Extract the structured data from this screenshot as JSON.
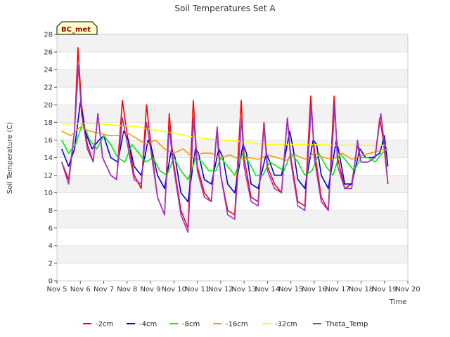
{
  "chart_data": {
    "type": "line",
    "title": "Soil Temperatures Set A",
    "xlabel": "Time",
    "ylabel": "Soil Temperature (C)",
    "badge": "BC_met",
    "xlim": [
      5,
      20
    ],
    "ylim": [
      0,
      28
    ],
    "x_ticks": [
      5,
      6,
      7,
      8,
      9,
      10,
      11,
      12,
      13,
      14,
      15,
      16,
      17,
      18,
      19,
      20
    ],
    "x_tick_labels": [
      "Nov 5",
      "Nov 6",
      "Nov 7",
      "Nov 8",
      "Nov 9",
      "Nov 10",
      "Nov 11",
      "Nov 12",
      "Nov 13",
      "Nov 14",
      "Nov 15",
      "Nov 16",
      "Nov 17",
      "Nov 18",
      "Nov 19",
      "Nov 20"
    ],
    "y_ticks": [
      0,
      2,
      4,
      6,
      8,
      10,
      12,
      14,
      16,
      18,
      20,
      22,
      24,
      26,
      28
    ],
    "grid": "horizontal bands",
    "legend_position": "bottom",
    "series": [
      {
        "name": "-2cm",
        "color": "#ff0000",
        "x": [
          5.2,
          5.5,
          5.75,
          5.9,
          6.05,
          6.3,
          6.55,
          6.75,
          6.95,
          7.3,
          7.55,
          7.8,
          7.98,
          8.3,
          8.6,
          8.83,
          8.95,
          9.3,
          9.6,
          9.8,
          9.95,
          10.3,
          10.6,
          10.83,
          11.0,
          11.3,
          11.6,
          11.83,
          12.0,
          12.3,
          12.6,
          12.88,
          13.0,
          13.3,
          13.6,
          13.85,
          14.0,
          14.3,
          14.6,
          14.85,
          15.0,
          15.3,
          15.6,
          15.85,
          16.0,
          16.3,
          16.6,
          16.85,
          17.0,
          17.3,
          17.6,
          17.85,
          18.0,
          18.3,
          18.6,
          18.8,
          18.95,
          19.15
        ],
        "y": [
          13.5,
          11.5,
          17,
          26.5,
          20,
          15.5,
          13.5,
          19,
          14,
          12,
          11.5,
          20.5,
          17,
          12,
          10.5,
          20,
          17,
          9.5,
          7.5,
          19,
          14,
          8,
          6,
          20.5,
          13,
          10,
          9,
          17,
          12,
          8,
          7.5,
          20.5,
          14,
          9.5,
          9,
          18,
          13,
          11,
          10,
          18.5,
          14,
          9,
          8.5,
          21,
          15,
          9.5,
          8,
          21,
          14,
          10.5,
          11,
          15.5,
          13.5,
          13.5,
          14,
          18.5,
          16,
          11
        ]
      },
      {
        "name": "-4cm",
        "color": "#0000cc",
        "x": [
          5.2,
          5.5,
          5.75,
          6.0,
          6.2,
          6.5,
          6.8,
          7.0,
          7.3,
          7.6,
          7.85,
          8.05,
          8.3,
          8.6,
          8.9,
          9.05,
          9.3,
          9.6,
          9.9,
          10.05,
          10.3,
          10.6,
          10.92,
          11.05,
          11.3,
          11.6,
          11.92,
          12.1,
          12.3,
          12.6,
          12.95,
          13.1,
          13.3,
          13.6,
          13.95,
          14.1,
          14.3,
          14.6,
          14.95,
          15.1,
          15.3,
          15.6,
          15.95,
          16.1,
          16.3,
          16.6,
          16.95,
          17.1,
          17.3,
          17.6,
          17.95,
          18.2,
          18.5,
          18.8,
          19.0,
          19.15
        ],
        "y": [
          15,
          13,
          15,
          20.3,
          17,
          15,
          16,
          16.5,
          14,
          13.5,
          17,
          16,
          13,
          12,
          16,
          15,
          12,
          10.5,
          15,
          14,
          10,
          9,
          15,
          14.5,
          11.5,
          11,
          15,
          14,
          11,
          10,
          15.5,
          14.5,
          11,
          10.5,
          14.5,
          13.5,
          12,
          12,
          17,
          15,
          11.5,
          10.5,
          16,
          15.5,
          12,
          10.5,
          16,
          14,
          11,
          11,
          15,
          14,
          14,
          14.5,
          16.5,
          13
        ]
      },
      {
        "name": "-8cm",
        "color": "#00ee00",
        "x": [
          5.2,
          5.5,
          5.8,
          6.1,
          6.4,
          6.7,
          7.0,
          7.3,
          7.6,
          7.9,
          8.2,
          8.5,
          8.8,
          9.1,
          9.4,
          9.7,
          10.0,
          10.3,
          10.6,
          10.95,
          11.2,
          11.5,
          11.8,
          12.0,
          12.3,
          12.6,
          12.95,
          13.2,
          13.5,
          13.8,
          14.1,
          14.4,
          14.7,
          15.0,
          15.3,
          15.6,
          15.9,
          16.2,
          16.5,
          16.8,
          17.1,
          17.4,
          17.7,
          18.0,
          18.3,
          18.6,
          18.9,
          19.15
        ],
        "y": [
          16,
          14.5,
          15.5,
          18,
          16,
          15,
          16.5,
          15.5,
          14,
          13.5,
          15.5,
          14.5,
          13.5,
          14,
          12.5,
          12,
          14,
          12.5,
          11.5,
          14,
          13.5,
          12.5,
          12.5,
          14,
          13,
          12,
          14.5,
          13.5,
          12,
          12,
          13.5,
          13,
          12.5,
          14.5,
          13.5,
          12,
          12.5,
          14.5,
          13,
          12,
          14.5,
          13.5,
          12.5,
          14,
          14,
          13.5,
          14.5,
          15
        ]
      },
      {
        "name": "-16cm",
        "color": "#ff9900",
        "x": [
          5.2,
          5.6,
          6.0,
          6.4,
          6.8,
          7.2,
          7.6,
          8.0,
          8.4,
          8.8,
          9.2,
          9.6,
          10.0,
          10.4,
          10.8,
          11.2,
          11.6,
          12.0,
          12.4,
          12.8,
          13.2,
          13.6,
          14.0,
          14.4,
          14.8,
          15.2,
          15.6,
          16.0,
          16.4,
          16.8,
          17.2,
          17.6,
          18.0,
          18.4,
          18.8,
          19.15
        ],
        "y": [
          17,
          16.5,
          17.5,
          17,
          16.8,
          16.5,
          16.5,
          16.8,
          16.2,
          15.5,
          16,
          15,
          14.5,
          15,
          14,
          14.5,
          14.5,
          14,
          14.3,
          13.8,
          14,
          13.8,
          14.3,
          14,
          13.7,
          14.3,
          13.8,
          14.5,
          14,
          13.8,
          14.5,
          13.8,
          14.2,
          14.5,
          14.8,
          15
        ]
      },
      {
        "name": "-32cm",
        "color": "#ffff00",
        "x": [
          5.2,
          6.0,
          7.0,
          8.0,
          8.5,
          9.0,
          9.5,
          10.0,
          10.5,
          11.0,
          11.5,
          12.0,
          12.5,
          13.0,
          13.5,
          14.0,
          15.0,
          16.0,
          17.0,
          18.0,
          19.0,
          19.15
        ],
        "y": [
          17.8,
          17.9,
          17.8,
          17.6,
          17.5,
          17.2,
          17,
          16.8,
          16.5,
          16.3,
          16.1,
          16,
          15.9,
          15.8,
          15.6,
          15.5,
          15.5,
          15.5,
          15.4,
          15.4,
          15.4,
          15.4
        ]
      },
      {
        "name": "Theta_Temp",
        "color": "#9933cc",
        "x": [
          5.2,
          5.5,
          5.75,
          5.92,
          6.05,
          6.3,
          6.55,
          6.75,
          6.95,
          7.3,
          7.55,
          7.8,
          7.98,
          8.3,
          8.6,
          8.83,
          8.95,
          9.3,
          9.6,
          9.8,
          9.95,
          10.3,
          10.6,
          10.85,
          11.0,
          11.3,
          11.6,
          11.85,
          12.0,
          12.3,
          12.6,
          12.9,
          13.0,
          13.3,
          13.6,
          13.85,
          14.0,
          14.3,
          14.6,
          14.85,
          15.0,
          15.3,
          15.6,
          15.88,
          16.0,
          16.3,
          16.6,
          16.88,
          17.0,
          17.3,
          17.6,
          17.85,
          18.0,
          18.3,
          18.6,
          18.85,
          19.0,
          19.15
        ],
        "y": [
          13.5,
          11,
          17,
          24.5,
          19,
          15,
          13.5,
          19,
          14,
          12,
          11.5,
          18.5,
          16,
          11.5,
          11,
          18,
          16,
          9.5,
          7.5,
          17.5,
          13.5,
          7.5,
          5.5,
          18.5,
          12.5,
          9.5,
          9,
          17.5,
          12,
          7.5,
          7,
          18.5,
          13,
          9,
          8.5,
          17.5,
          12.5,
          10.5,
          10,
          18.5,
          13.5,
          8.5,
          8,
          20,
          14,
          9,
          8,
          20,
          13,
          10.5,
          10.5,
          16,
          13.5,
          13.5,
          14,
          19,
          15.5,
          11
        ]
      }
    ]
  }
}
